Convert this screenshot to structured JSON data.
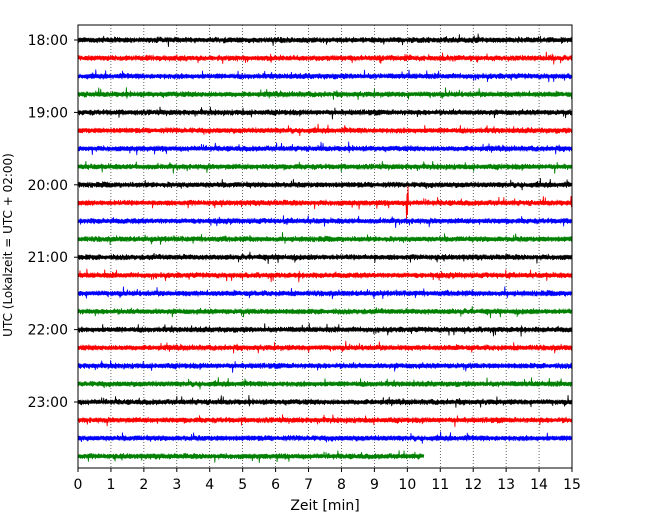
{
  "chart_data": {
    "type": "line",
    "title": "",
    "xlabel": "Zeit  [min]",
    "ylabel": "UTC (Lokalzeit = UTC + 02:00)",
    "xlim": [
      0,
      15
    ],
    "x_ticks": [
      0,
      1,
      2,
      3,
      4,
      5,
      6,
      7,
      8,
      9,
      10,
      11,
      12,
      13,
      14,
      15
    ],
    "y_tick_labels": [
      "18:00",
      "19:00",
      "20:00",
      "21:00",
      "22:00",
      "23:00"
    ],
    "grid": "vertical dotted at each minute",
    "trace_interval_minutes": 15,
    "colors": [
      "#000000",
      "#ff0000",
      "#0000ff",
      "#008000"
    ],
    "traces": [
      {
        "start": "18:00",
        "color": "#000000",
        "end_min": 15
      },
      {
        "start": "18:15",
        "color": "#ff0000",
        "end_min": 15
      },
      {
        "start": "18:30",
        "color": "#0000ff",
        "end_min": 15
      },
      {
        "start": "18:45",
        "color": "#008000",
        "end_min": 15
      },
      {
        "start": "19:00",
        "color": "#000000",
        "end_min": 15
      },
      {
        "start": "19:15",
        "color": "#ff0000",
        "end_min": 15
      },
      {
        "start": "19:30",
        "color": "#0000ff",
        "end_min": 15
      },
      {
        "start": "19:45",
        "color": "#008000",
        "end_min": 15
      },
      {
        "start": "20:00",
        "color": "#000000",
        "end_min": 15
      },
      {
        "start": "20:15",
        "color": "#ff0000",
        "end_min": 15,
        "event_at_min": 10.0
      },
      {
        "start": "20:30",
        "color": "#0000ff",
        "end_min": 15
      },
      {
        "start": "20:45",
        "color": "#008000",
        "end_min": 15
      },
      {
        "start": "21:00",
        "color": "#000000",
        "end_min": 15
      },
      {
        "start": "21:15",
        "color": "#ff0000",
        "end_min": 15
      },
      {
        "start": "21:30",
        "color": "#0000ff",
        "end_min": 15
      },
      {
        "start": "21:45",
        "color": "#008000",
        "end_min": 15
      },
      {
        "start": "22:00",
        "color": "#000000",
        "end_min": 15
      },
      {
        "start": "22:15",
        "color": "#ff0000",
        "end_min": 15
      },
      {
        "start": "22:30",
        "color": "#0000ff",
        "end_min": 15
      },
      {
        "start": "22:45",
        "color": "#008000",
        "end_min": 15
      },
      {
        "start": "23:00",
        "color": "#000000",
        "end_min": 15
      },
      {
        "start": "23:15",
        "color": "#ff0000",
        "end_min": 15
      },
      {
        "start": "23:30",
        "color": "#0000ff",
        "end_min": 15
      },
      {
        "start": "23:45",
        "color": "#008000",
        "end_min": 10.5
      }
    ]
  }
}
